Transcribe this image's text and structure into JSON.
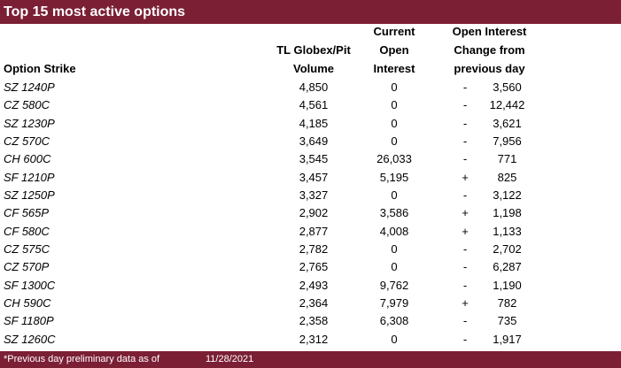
{
  "title": "Top 15 most active options",
  "headers": {
    "strike": "Option Strike",
    "volume": [
      "TL Globex/Pit",
      "Volume"
    ],
    "oi": [
      "Current",
      "Open",
      "Interest"
    ],
    "change": [
      "Open Interest",
      "Change from",
      "previous day"
    ]
  },
  "rows": [
    {
      "strike": "SZ 1240P",
      "volume": "4,850",
      "oi": "0",
      "sign": "-",
      "change": "3,560"
    },
    {
      "strike": "CZ 580C",
      "volume": "4,561",
      "oi": "0",
      "sign": "-",
      "change": "12,442"
    },
    {
      "strike": "SZ 1230P",
      "volume": "4,185",
      "oi": "0",
      "sign": "-",
      "change": "3,621"
    },
    {
      "strike": "CZ 570C",
      "volume": "3,649",
      "oi": "0",
      "sign": "-",
      "change": "7,956"
    },
    {
      "strike": "CH 600C",
      "volume": "3,545",
      "oi": "26,033",
      "sign": "-",
      "change": "771"
    },
    {
      "strike": "SF 1210P",
      "volume": "3,457",
      "oi": "5,195",
      "sign": "+",
      "change": "825"
    },
    {
      "strike": "SZ 1250P",
      "volume": "3,327",
      "oi": "0",
      "sign": "-",
      "change": "3,122"
    },
    {
      "strike": "CF 565P",
      "volume": "2,902",
      "oi": "3,586",
      "sign": "+",
      "change": "1,198"
    },
    {
      "strike": "CF 580C",
      "volume": "2,877",
      "oi": "4,008",
      "sign": "+",
      "change": "1,133"
    },
    {
      "strike": "CZ 575C",
      "volume": "2,782",
      "oi": "0",
      "sign": "-",
      "change": "2,702"
    },
    {
      "strike": "CZ 570P",
      "volume": "2,765",
      "oi": "0",
      "sign": "-",
      "change": "6,287"
    },
    {
      "strike": "SF 1300C",
      "volume": "2,493",
      "oi": "9,762",
      "sign": "-",
      "change": "1,190"
    },
    {
      "strike": "CH 590C",
      "volume": "2,364",
      "oi": "7,979",
      "sign": "+",
      "change": "782"
    },
    {
      "strike": "SF 1180P",
      "volume": "2,358",
      "oi": "6,308",
      "sign": "-",
      "change": "735"
    },
    {
      "strike": "SZ 1260C",
      "volume": "2,312",
      "oi": "0",
      "sign": "-",
      "change": "1,917"
    }
  ],
  "footer": {
    "note": "*Previous day preliminary data as of",
    "date": "11/28/2021"
  },
  "colors": {
    "accent": "#7b1f35"
  }
}
